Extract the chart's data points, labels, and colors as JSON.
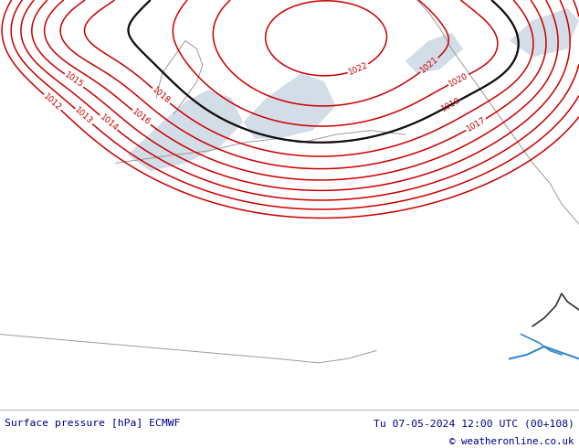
{
  "title_left": "Surface pressure [hPa] ECMWF",
  "title_right": "Tu 07-05-2024 12:00 UTC (00+108)",
  "copyright": "© weatheronline.co.uk",
  "footer_bg": "#ffffff",
  "footer_text_color": "#00008B",
  "map_bg_land": "#c8e8c0",
  "map_bg_sea": "#d8e8f0",
  "contour_color_red": "#cc0000",
  "contour_color_blue": "#0055cc",
  "contour_color_black": "#111111",
  "land_boundary_color": "#999999",
  "figsize": [
    6.34,
    4.9
  ],
  "dpi": 100,
  "contour_levels": [
    1012,
    1013,
    1014,
    1015,
    1016,
    1017,
    1018,
    1019,
    1020,
    1021,
    1022
  ],
  "black_level": 1019
}
